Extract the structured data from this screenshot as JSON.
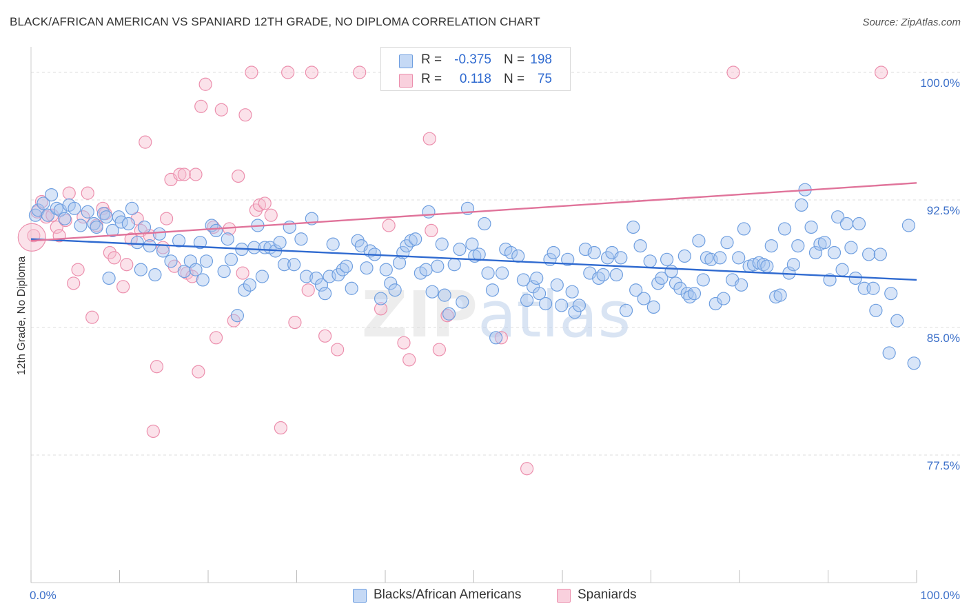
{
  "title": "BLACK/AFRICAN AMERICAN VS SPANIARD 12TH GRADE, NO DIPLOMA CORRELATION CHART",
  "source": "Source: ZipAtlas.com",
  "watermark": "ZIPatlas",
  "colors": {
    "blue_fill": "#a9c6ef",
    "blue_stroke": "#6f9fe0",
    "blue_line": "#2f6ad0",
    "pink_fill": "#f6bfd0",
    "pink_stroke": "#ec8fad",
    "pink_line": "#e0739a",
    "axis_text": "#3b6fc9",
    "grid": "#dddddd"
  },
  "legend": {
    "rows": [
      {
        "r_label": "R =",
        "r_value": "-0.375",
        "n_label": "N =",
        "n_value": "198",
        "color": "blue"
      },
      {
        "r_label": "R =",
        "r_value": "0.118",
        "n_label": "N =",
        "n_value": "75",
        "color": "pink"
      }
    ]
  },
  "bottom_legend": [
    "Blacks/African Americans",
    "Spaniards"
  ],
  "chart_data": {
    "type": "scatter",
    "title": "BLACK/AFRICAN AMERICAN VS SPANIARD 12TH GRADE, NO DIPLOMA CORRELATION CHART",
    "xlabel": "",
    "ylabel": "12th Grade, No Diploma",
    "xlim": [
      0,
      100
    ],
    "ylim": [
      70.0,
      101.5
    ],
    "x_tick_labels": [
      "0.0%",
      "100.0%"
    ],
    "y_ticks": [
      77.5,
      85.0,
      92.5,
      100.0
    ],
    "y_tick_labels": [
      "77.5%",
      "85.0%",
      "92.5%",
      "100.0%"
    ],
    "grid": true,
    "legend_position": "top-center",
    "series": [
      {
        "name": "Blacks/African Americans",
        "color": "blue",
        "trend": {
          "x": [
            0,
            100
          ],
          "y": [
            90.2,
            87.8
          ]
        },
        "points": [
          [
            0.5,
            91.6
          ],
          [
            0.8,
            91.9
          ],
          [
            1.4,
            92.3
          ],
          [
            1.9,
            91.6
          ],
          [
            2.3,
            92.8
          ],
          [
            2.9,
            92.0
          ],
          [
            3.3,
            91.9
          ],
          [
            3.8,
            91.4
          ],
          [
            4.3,
            92.2
          ],
          [
            4.9,
            92.0
          ],
          [
            5.6,
            91.0
          ],
          [
            6.4,
            91.8
          ],
          [
            7.1,
            91.1
          ],
          [
            7.4,
            90.9
          ],
          [
            8.2,
            91.7
          ],
          [
            8.5,
            91.5
          ],
          [
            8.8,
            87.9
          ],
          [
            9.2,
            90.7
          ],
          [
            9.9,
            91.5
          ],
          [
            10.2,
            91.2
          ],
          [
            11.0,
            91.1
          ],
          [
            11.4,
            92.0
          ],
          [
            12.0,
            90.0
          ],
          [
            12.4,
            88.4
          ],
          [
            12.8,
            90.9
          ],
          [
            13.4,
            89.8
          ],
          [
            14.0,
            88.1
          ],
          [
            14.5,
            90.5
          ],
          [
            14.9,
            89.5
          ],
          [
            15.8,
            88.9
          ],
          [
            16.7,
            90.1
          ],
          [
            17.3,
            88.3
          ],
          [
            18.0,
            88.9
          ],
          [
            18.6,
            88.4
          ],
          [
            19.1,
            90.0
          ],
          [
            19.4,
            87.8
          ],
          [
            19.8,
            88.9
          ],
          [
            20.4,
            91.0
          ],
          [
            20.9,
            90.7
          ],
          [
            21.8,
            88.3
          ],
          [
            22.2,
            90.2
          ],
          [
            22.6,
            89.0
          ],
          [
            23.3,
            85.7
          ],
          [
            23.8,
            89.6
          ],
          [
            24.1,
            87.2
          ],
          [
            24.7,
            87.5
          ],
          [
            25.2,
            89.7
          ],
          [
            25.6,
            91.0
          ],
          [
            26.1,
            88.0
          ],
          [
            26.4,
            89.7
          ],
          [
            27.0,
            89.7
          ],
          [
            27.6,
            89.5
          ],
          [
            28.1,
            90.0
          ],
          [
            28.6,
            88.7
          ],
          [
            29.2,
            90.9
          ],
          [
            29.7,
            88.7
          ],
          [
            30.5,
            90.2
          ],
          [
            31.1,
            88.0
          ],
          [
            31.7,
            91.4
          ],
          [
            32.2,
            87.9
          ],
          [
            32.8,
            87.5
          ],
          [
            33.2,
            87.0
          ],
          [
            33.7,
            88.0
          ],
          [
            34.1,
            89.9
          ],
          [
            34.7,
            88.1
          ],
          [
            35.2,
            88.4
          ],
          [
            35.6,
            88.6
          ],
          [
            36.2,
            87.3
          ],
          [
            36.9,
            90.1
          ],
          [
            37.3,
            89.8
          ],
          [
            37.9,
            88.5
          ],
          [
            38.3,
            89.5
          ],
          [
            38.8,
            89.3
          ],
          [
            39.5,
            86.7
          ],
          [
            40.1,
            88.4
          ],
          [
            40.6,
            87.6
          ],
          [
            41.1,
            87.2
          ],
          [
            41.6,
            88.8
          ],
          [
            42.0,
            89.4
          ],
          [
            42.4,
            89.8
          ],
          [
            42.9,
            90.1
          ],
          [
            43.4,
            90.2
          ],
          [
            44.0,
            88.2
          ],
          [
            44.6,
            88.4
          ],
          [
            44.9,
            91.8
          ],
          [
            45.3,
            87.1
          ],
          [
            45.9,
            88.6
          ],
          [
            46.4,
            89.9
          ],
          [
            46.7,
            86.9
          ],
          [
            47.2,
            85.8
          ],
          [
            47.8,
            88.7
          ],
          [
            48.4,
            89.6
          ],
          [
            48.7,
            86.5
          ],
          [
            49.3,
            92.0
          ],
          [
            49.8,
            89.9
          ],
          [
            50.1,
            89.2
          ],
          [
            50.6,
            89.3
          ],
          [
            51.2,
            91.1
          ],
          [
            51.6,
            88.2
          ],
          [
            52.1,
            87.2
          ],
          [
            52.5,
            84.4
          ],
          [
            53.2,
            88.2
          ],
          [
            53.6,
            89.6
          ],
          [
            54.2,
            89.4
          ],
          [
            55.0,
            89.2
          ],
          [
            55.6,
            87.8
          ],
          [
            56.0,
            86.6
          ],
          [
            56.7,
            87.4
          ],
          [
            57.1,
            87.9
          ],
          [
            57.4,
            87.0
          ],
          [
            58.1,
            86.4
          ],
          [
            58.6,
            89.0
          ],
          [
            59.0,
            89.4
          ],
          [
            59.4,
            87.5
          ],
          [
            59.9,
            86.3
          ],
          [
            60.6,
            89.0
          ],
          [
            61.1,
            87.1
          ],
          [
            61.4,
            85.9
          ],
          [
            61.9,
            86.3
          ],
          [
            62.6,
            89.6
          ],
          [
            63.1,
            88.2
          ],
          [
            63.6,
            89.4
          ],
          [
            64.1,
            87.9
          ],
          [
            64.6,
            88.1
          ],
          [
            65.1,
            89.1
          ],
          [
            65.6,
            89.4
          ],
          [
            66.1,
            88.1
          ],
          [
            66.6,
            89.1
          ],
          [
            67.2,
            86.0
          ],
          [
            68.0,
            90.9
          ],
          [
            68.3,
            87.2
          ],
          [
            68.8,
            89.8
          ],
          [
            69.2,
            86.7
          ],
          [
            69.9,
            88.9
          ],
          [
            70.3,
            86.2
          ],
          [
            70.8,
            87.6
          ],
          [
            71.2,
            87.9
          ],
          [
            71.8,
            89.0
          ],
          [
            72.3,
            88.3
          ],
          [
            72.8,
            87.6
          ],
          [
            73.3,
            87.3
          ],
          [
            73.8,
            89.2
          ],
          [
            74.1,
            87.0
          ],
          [
            74.4,
            86.8
          ],
          [
            74.9,
            87.0
          ],
          [
            75.4,
            90.1
          ],
          [
            75.9,
            87.8
          ],
          [
            76.3,
            89.1
          ],
          [
            76.8,
            89.0
          ],
          [
            77.3,
            86.4
          ],
          [
            77.8,
            89.1
          ],
          [
            78.2,
            86.7
          ],
          [
            78.6,
            90.0
          ],
          [
            79.2,
            87.8
          ],
          [
            79.9,
            89.1
          ],
          [
            80.2,
            87.5
          ],
          [
            80.5,
            90.8
          ],
          [
            81.1,
            88.6
          ],
          [
            81.6,
            88.7
          ],
          [
            82.2,
            88.8
          ],
          [
            82.7,
            88.7
          ],
          [
            83.1,
            88.6
          ],
          [
            83.6,
            89.8
          ],
          [
            84.1,
            86.8
          ],
          [
            84.6,
            86.9
          ],
          [
            85.1,
            90.8
          ],
          [
            85.6,
            88.2
          ],
          [
            86.1,
            88.7
          ],
          [
            86.6,
            89.8
          ],
          [
            87.0,
            92.2
          ],
          [
            87.4,
            93.1
          ],
          [
            88.1,
            90.9
          ],
          [
            88.6,
            89.4
          ],
          [
            89.1,
            89.9
          ],
          [
            89.6,
            90.0
          ],
          [
            90.2,
            87.8
          ],
          [
            90.7,
            89.4
          ],
          [
            91.1,
            91.5
          ],
          [
            91.6,
            88.4
          ],
          [
            92.1,
            91.1
          ],
          [
            92.6,
            89.7
          ],
          [
            93.1,
            87.9
          ],
          [
            93.5,
            91.1
          ],
          [
            94.1,
            87.3
          ],
          [
            94.6,
            89.3
          ],
          [
            95.1,
            87.3
          ],
          [
            95.4,
            86.0
          ],
          [
            95.9,
            89.3
          ],
          [
            97.1,
            87.0
          ],
          [
            97.8,
            85.4
          ],
          [
            99.1,
            91.0
          ],
          [
            99.7,
            82.9
          ],
          [
            96.9,
            83.5
          ]
        ]
      },
      {
        "name": "Spaniards",
        "color": "pink",
        "trend": {
          "x": [
            0,
            100
          ],
          "y": [
            90.1,
            93.5
          ]
        },
        "points": [
          [
            0.3,
            90.4
          ],
          [
            0.7,
            91.8
          ],
          [
            1.2,
            92.4
          ],
          [
            1.7,
            91.5
          ],
          [
            2.4,
            91.6
          ],
          [
            2.9,
            90.9
          ],
          [
            3.2,
            90.4
          ],
          [
            3.9,
            91.3
          ],
          [
            4.3,
            92.9
          ],
          [
            4.8,
            87.6
          ],
          [
            5.3,
            88.4
          ],
          [
            5.9,
            91.5
          ],
          [
            6.4,
            92.9
          ],
          [
            6.9,
            85.6
          ],
          [
            7.4,
            91.0
          ],
          [
            8.1,
            92.0
          ],
          [
            8.4,
            91.7
          ],
          [
            8.9,
            89.4
          ],
          [
            9.4,
            89.1
          ],
          [
            10.4,
            87.4
          ],
          [
            10.8,
            88.7
          ],
          [
            11.3,
            90.2
          ],
          [
            12.0,
            91.4
          ],
          [
            12.4,
            90.7
          ],
          [
            12.9,
            95.9
          ],
          [
            13.4,
            90.4
          ],
          [
            13.8,
            78.9
          ],
          [
            14.2,
            82.7
          ],
          [
            14.9,
            89.7
          ],
          [
            15.3,
            91.4
          ],
          [
            15.8,
            93.7
          ],
          [
            16.2,
            88.6
          ],
          [
            16.8,
            94.0
          ],
          [
            17.3,
            94.0
          ],
          [
            17.6,
            88.2
          ],
          [
            18.2,
            88.0
          ],
          [
            18.6,
            94.0
          ],
          [
            18.9,
            82.4
          ],
          [
            19.2,
            98.0
          ],
          [
            19.7,
            99.3
          ],
          [
            20.6,
            90.9
          ],
          [
            20.9,
            84.4
          ],
          [
            21.5,
            97.8
          ],
          [
            22.4,
            90.8
          ],
          [
            22.9,
            85.4
          ],
          [
            23.4,
            93.9
          ],
          [
            23.9,
            88.2
          ],
          [
            24.2,
            97.5
          ],
          [
            24.9,
            100.0
          ],
          [
            25.4,
            91.9
          ],
          [
            25.8,
            92.2
          ],
          [
            26.4,
            92.3
          ],
          [
            27.1,
            91.6
          ],
          [
            28.2,
            79.1
          ],
          [
            29.0,
            100.0
          ],
          [
            29.8,
            85.3
          ],
          [
            31.3,
            87.2
          ],
          [
            31.7,
            100.0
          ],
          [
            33.2,
            84.5
          ],
          [
            34.6,
            83.7
          ],
          [
            37.1,
            100.0
          ],
          [
            39.5,
            86.1
          ],
          [
            40.4,
            91.0
          ],
          [
            42.1,
            84.1
          ],
          [
            42.7,
            83.1
          ],
          [
            45.0,
            96.1
          ],
          [
            45.2,
            90.7
          ],
          [
            46.1,
            83.7
          ],
          [
            47.0,
            85.7
          ],
          [
            53.1,
            84.4
          ],
          [
            55.4,
            100.0
          ],
          [
            56.0,
            76.7
          ],
          [
            59.2,
            100.0
          ],
          [
            79.3,
            100.0
          ],
          [
            96.0,
            100.0
          ]
        ]
      }
    ]
  }
}
